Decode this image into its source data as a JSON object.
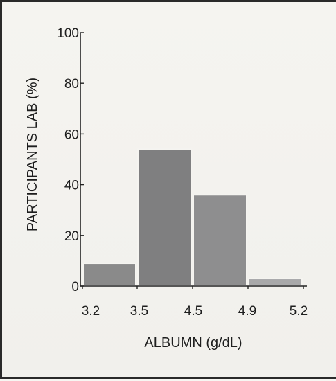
{
  "chart_data": {
    "type": "bar",
    "title": "",
    "xlabel": "ALBUMN (g/dL)",
    "ylabel": "PARTICIPANTS LAB (%)",
    "bins": [
      {
        "from": 3.2,
        "to": 3.5,
        "value": 9
      },
      {
        "from": 3.5,
        "to": 4.5,
        "value": 54
      },
      {
        "from": 4.5,
        "to": 4.9,
        "value": 36
      },
      {
        "from": 4.9,
        "to": 5.2,
        "value": 3
      }
    ],
    "x_tick_labels": [
      "3.2",
      "3.5",
      "4.5",
      "4.9",
      "5.2"
    ],
    "y_ticks": [
      0,
      20,
      40,
      60,
      80,
      100
    ],
    "ylim": [
      0,
      100
    ],
    "grid": false,
    "colors": {
      "bars": [
        "#8a8a8a",
        "#7f7f80",
        "#8e8e8f",
        "#a9a9aa"
      ],
      "axis": "#222222"
    }
  }
}
